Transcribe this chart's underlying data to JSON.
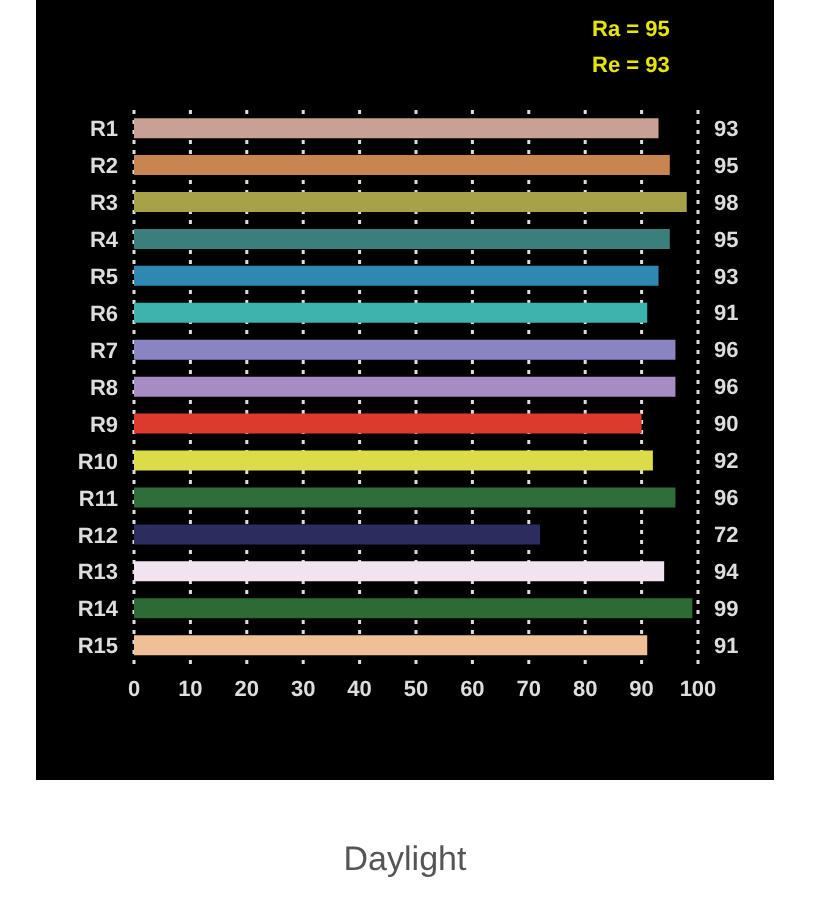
{
  "chart_data": {
    "type": "bar",
    "orientation": "horizontal",
    "title": "Daylight",
    "annotations": [
      "Ra = 95",
      "Re = 93"
    ],
    "categories": [
      "R1",
      "R2",
      "R3",
      "R4",
      "R5",
      "R6",
      "R7",
      "R8",
      "R9",
      "R10",
      "R11",
      "R12",
      "R13",
      "R14",
      "R15"
    ],
    "values": [
      93,
      95,
      98,
      95,
      93,
      91,
      96,
      96,
      90,
      92,
      96,
      72,
      94,
      99,
      91
    ],
    "colors": [
      "#c9a192",
      "#c88552",
      "#a7a24a",
      "#3a7f7c",
      "#2f88b2",
      "#3db3ad",
      "#8a84c2",
      "#a68cc2",
      "#db3a2c",
      "#dcdc48",
      "#2f6e3b",
      "#2c2c5e",
      "#f1e4f0",
      "#2d6a34",
      "#efbf95"
    ],
    "xlim": [
      0,
      100
    ],
    "xticks": [
      0,
      10,
      20,
      30,
      40,
      50,
      60,
      70,
      80,
      90,
      100
    ],
    "grid": "x",
    "data_labels": true
  }
}
